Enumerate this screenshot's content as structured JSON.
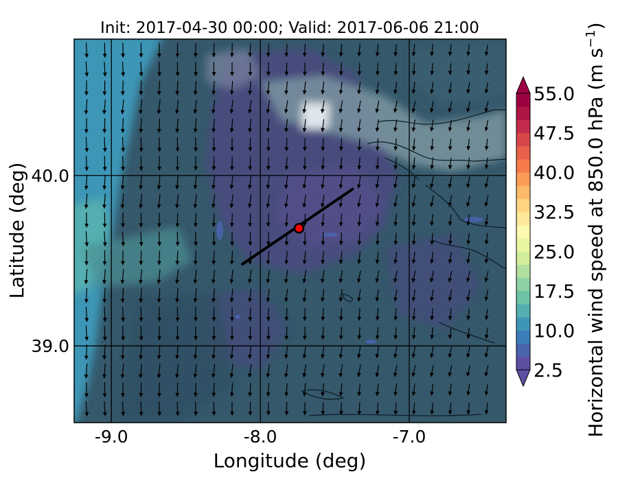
{
  "chart_data": {
    "type": "heatmap",
    "title": "Init: 2017-04-30 00:00; Valid: 2017-06-06 21:00",
    "xlabel": "Longitude (deg)",
    "ylabel": "Latitude (deg)",
    "xlim": [
      -9.25,
      -6.35
    ],
    "ylim": [
      38.55,
      40.8
    ],
    "x_ticks": [
      -9.0,
      -8.0,
      -7.0
    ],
    "x_tick_labels": [
      "-9.0",
      "-8.0",
      "-7.0"
    ],
    "y_ticks": [
      39.0,
      40.0
    ],
    "y_tick_labels": [
      "39.0",
      "40.0"
    ],
    "grid": true,
    "colorbar": {
      "label_main": "Horizontal wind speed at 850.0 hPa (m s",
      "label_sup": "−1",
      "label_end": ")",
      "min": 2.5,
      "max": 55.0,
      "step": 2.5,
      "extend": "both",
      "tick_labels": [
        "2.5",
        "10.0",
        "17.5",
        "25.0",
        "32.5",
        "40.0",
        "47.5",
        "55.0"
      ],
      "tick_values": [
        2.5,
        10.0,
        17.5,
        25.0,
        32.5,
        40.0,
        47.5,
        55.0
      ],
      "colors": [
        "#5e4fa2",
        "#4a63ad",
        "#3b7db9",
        "#3e96b6",
        "#55aeaf",
        "#6cc3a5",
        "#8ed1a4",
        "#b0df9f",
        "#d2ed9b",
        "#eaf69f",
        "#fbf8b0",
        "#fee89a",
        "#fed481",
        "#fdb96a",
        "#fc9b58",
        "#f67b4b",
        "#e8604a",
        "#d7474a",
        "#c42b4c",
        "#ad1545",
        "#9e0142"
      ]
    },
    "cross_section_line": {
      "start": [
        -8.12,
        39.48
      ],
      "end": [
        -7.38,
        39.92
      ]
    },
    "point_marker": {
      "lon": -7.74,
      "lat": 39.69,
      "color": "#ff0000"
    }
  }
}
